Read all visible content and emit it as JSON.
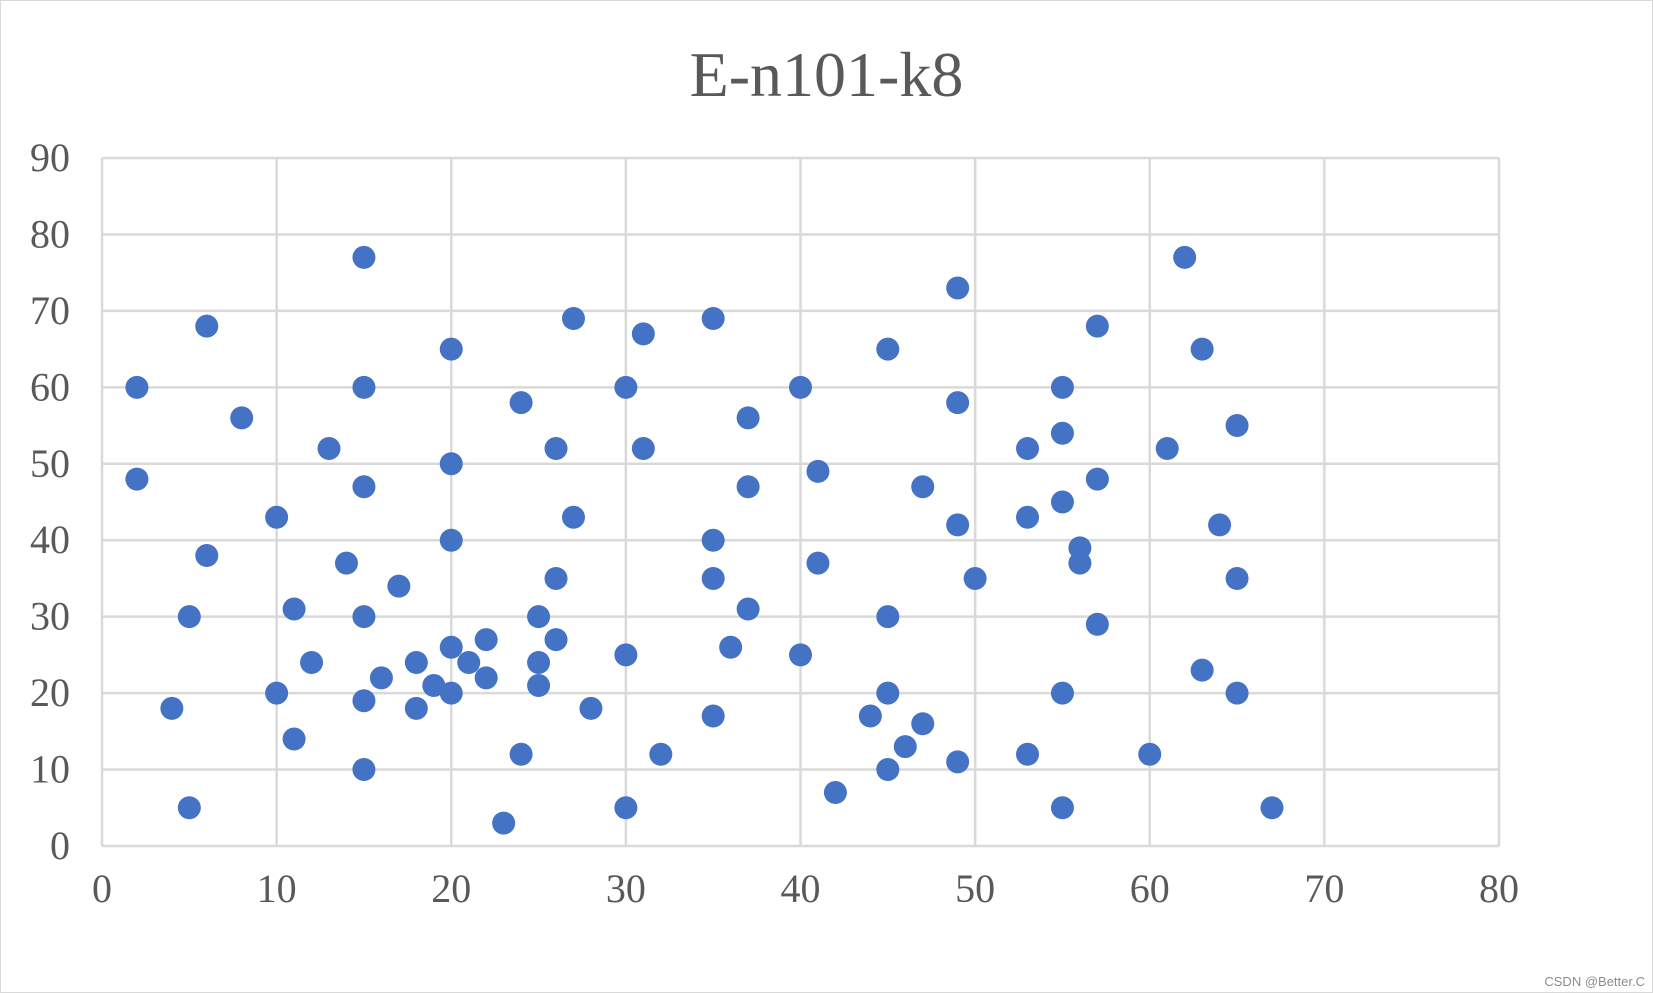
{
  "chart_data": {
    "type": "scatter",
    "title": "E-n101-k8",
    "xlabel": "",
    "ylabel": "",
    "xlim": [
      0,
      80
    ],
    "ylim": [
      0,
      90
    ],
    "x_ticks": [
      "0",
      "10",
      "20",
      "30",
      "40",
      "50",
      "60",
      "70",
      "80"
    ],
    "y_ticks": [
      "0",
      "10",
      "20",
      "30",
      "40",
      "50",
      "60",
      "70",
      "80",
      "90"
    ],
    "grid": true,
    "legend": "none",
    "marker_color": "#4472C4",
    "gridline_color": "#d9d9d9",
    "series": [
      {
        "points": [
          [
            2,
            60
          ],
          [
            2,
            48
          ],
          [
            4,
            18
          ],
          [
            5,
            30
          ],
          [
            5,
            5
          ],
          [
            6,
            68
          ],
          [
            6,
            38
          ],
          [
            8,
            56
          ],
          [
            10,
            43
          ],
          [
            10,
            20
          ],
          [
            11,
            31
          ],
          [
            11,
            14
          ],
          [
            12,
            24
          ],
          [
            13,
            52
          ],
          [
            14,
            37
          ],
          [
            15,
            77
          ],
          [
            15,
            60
          ],
          [
            15,
            47
          ],
          [
            15,
            30
          ],
          [
            15,
            19
          ],
          [
            15,
            10
          ],
          [
            16,
            22
          ],
          [
            17,
            34
          ],
          [
            18,
            24
          ],
          [
            18,
            18
          ],
          [
            19,
            21
          ],
          [
            20,
            65
          ],
          [
            20,
            50
          ],
          [
            20,
            40
          ],
          [
            20,
            26
          ],
          [
            20,
            20
          ],
          [
            21,
            24
          ],
          [
            22,
            27
          ],
          [
            22,
            22
          ],
          [
            23,
            3
          ],
          [
            24,
            58
          ],
          [
            24,
            12
          ],
          [
            25,
            30
          ],
          [
            25,
            24
          ],
          [
            25,
            21
          ],
          [
            26,
            52
          ],
          [
            26,
            35
          ],
          [
            26,
            27
          ],
          [
            27,
            69
          ],
          [
            27,
            43
          ],
          [
            28,
            18
          ],
          [
            30,
            60
          ],
          [
            30,
            25
          ],
          [
            30,
            5
          ],
          [
            31,
            67
          ],
          [
            31,
            52
          ],
          [
            32,
            12
          ],
          [
            35,
            69
          ],
          [
            35,
            40
          ],
          [
            35,
            35
          ],
          [
            35,
            17
          ],
          [
            36,
            26
          ],
          [
            37,
            56
          ],
          [
            37,
            47
          ],
          [
            37,
            31
          ],
          [
            40,
            60
          ],
          [
            40,
            25
          ],
          [
            41,
            49
          ],
          [
            41,
            37
          ],
          [
            42,
            7
          ],
          [
            44,
            17
          ],
          [
            45,
            65
          ],
          [
            45,
            30
          ],
          [
            45,
            20
          ],
          [
            45,
            10
          ],
          [
            46,
            13
          ],
          [
            47,
            47
          ],
          [
            47,
            16
          ],
          [
            49,
            73
          ],
          [
            49,
            58
          ],
          [
            49,
            42
          ],
          [
            49,
            11
          ],
          [
            50,
            35
          ],
          [
            53,
            52
          ],
          [
            53,
            43
          ],
          [
            53,
            12
          ],
          [
            55,
            60
          ],
          [
            55,
            54
          ],
          [
            55,
            45
          ],
          [
            55,
            20
          ],
          [
            55,
            5
          ],
          [
            56,
            39
          ],
          [
            56,
            37
          ],
          [
            57,
            68
          ],
          [
            57,
            48
          ],
          [
            57,
            29
          ],
          [
            60,
            12
          ],
          [
            61,
            52
          ],
          [
            62,
            77
          ],
          [
            63,
            65
          ],
          [
            63,
            23
          ],
          [
            64,
            42
          ],
          [
            65,
            55
          ],
          [
            65,
            35
          ],
          [
            65,
            20
          ],
          [
            67,
            5
          ]
        ]
      }
    ]
  },
  "watermark": "CSDN @Better.C"
}
